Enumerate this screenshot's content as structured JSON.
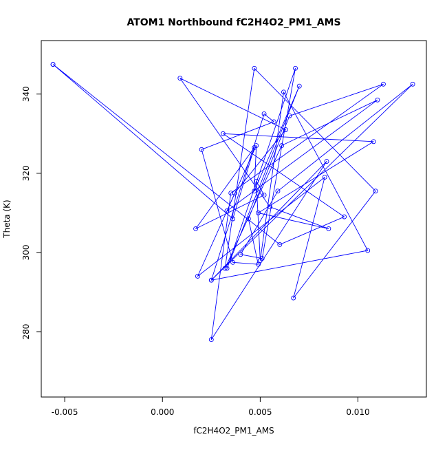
{
  "chart_data": {
    "type": "scatter",
    "title": "ATOM1 Northbound fC2H4O2_PM1_AMS",
    "xlabel": "fC2H4O2_PM1_AMS",
    "ylabel": "Theta (K)",
    "xlim": [
      -0.0062,
      0.0135
    ],
    "ylim": [
      263.5,
      353.5
    ],
    "x_ticks": [
      -0.005,
      0.0,
      0.005,
      0.01
    ],
    "x_tick_labels": [
      "-0.005",
      "0.000",
      "0.005",
      "0.010"
    ],
    "y_ticks": [
      280,
      300,
      320,
      340
    ],
    "y_tick_labels": [
      "280",
      "300",
      "320",
      "340"
    ],
    "series": [
      {
        "color": "#0000ff",
        "x": [
          -0.0056,
          0.0036,
          0.0047,
          0.0017,
          0.0052,
          0.0048,
          0.005,
          0.0062,
          0.0105,
          0.0025,
          0.0052,
          0.0057,
          0.002,
          0.0036,
          0.0049,
          0.0044,
          0.0065,
          0.0113,
          0.0035,
          0.0025,
          0.0084,
          0.0025,
          0.0128,
          0.0059,
          0.004,
          0.0051,
          0.0068,
          0.0033,
          0.007,
          0.0047,
          0.0048,
          0.0018,
          0.0083,
          0.0067,
          0.0109,
          0.0047,
          0.0032,
          0.0061,
          0.011,
          0.0033,
          0.0037,
          0.0063,
          0.0009,
          0.0055,
          0.0085,
          0.0049,
          0.0108,
          0.0031,
          0.0093,
          0.006,
          -0.0056
        ],
        "y": [
          347.5,
          308.5,
          326.5,
          306.0,
          314.5,
          318.0,
          298.0,
          340.5,
          300.5,
          293.0,
          335.0,
          333.0,
          326.0,
          297.5,
          297.0,
          308.5,
          334.5,
          342.5,
          315.0,
          278.0,
          323.0,
          293.0,
          342.5,
          315.5,
          299.5,
          298.5,
          346.5,
          296.0,
          342.0,
          315.5,
          327.0,
          294.0,
          319.0,
          288.5,
          315.5,
          346.5,
          296.0,
          327.0,
          338.5,
          310.5,
          315.0,
          331.0,
          344.0,
          311.5,
          306.0,
          310.0,
          328.0,
          330.0,
          309.0,
          302.0,
          347.5
        ]
      }
    ]
  }
}
